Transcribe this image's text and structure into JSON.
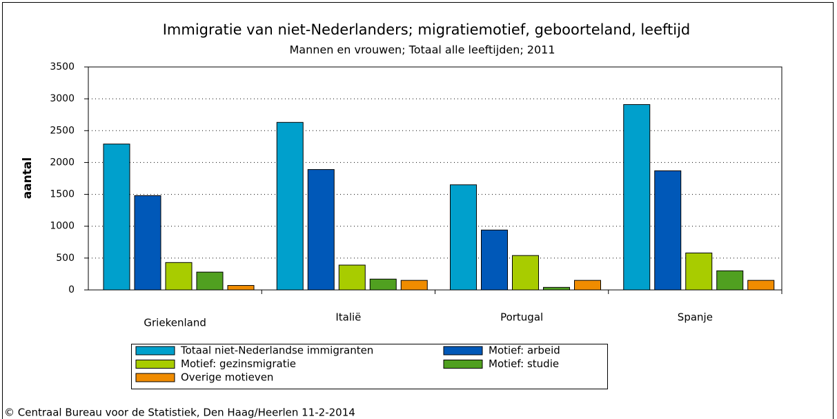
{
  "chart_data": {
    "type": "bar",
    "title": "Immigratie van niet-Nederlanders; migratiemotief, geboorteland, leeftijd",
    "subtitle": "Mannen en vrouwen; Totaal alle leeftijden; 2011",
    "y_label": "aantal",
    "categories": [
      "Griekenland",
      "Italië",
      "Portugal",
      "Spanje"
    ],
    "series": [
      {
        "name": "Totaal niet-Nederlandse immigranten",
        "color": "#00a0cc",
        "values": [
          2290,
          2630,
          1650,
          2910
        ]
      },
      {
        "name": "Motief: arbeid",
        "color": "#0058b8",
        "values": [
          1480,
          1890,
          940,
          1870
        ]
      },
      {
        "name": "Motief: gezinsmigratie",
        "color": "#a8cc00",
        "values": [
          430,
          390,
          540,
          580
        ]
      },
      {
        "name": "Motief: studie",
        "color": "#50a020",
        "values": [
          280,
          170,
          40,
          300
        ]
      },
      {
        "name": "Overige motieven",
        "color": "#f08c00",
        "values": [
          70,
          150,
          150,
          150
        ]
      }
    ],
    "ylim": [
      0,
      3500
    ],
    "yticks": [
      0,
      500,
      1000,
      1500,
      2000,
      2500,
      3000,
      3500
    ],
    "grid": true,
    "legend": "bottom",
    "footer": "© Centraal Bureau voor de Statistiek, Den Haag/Heerlen 11-2-2014"
  }
}
